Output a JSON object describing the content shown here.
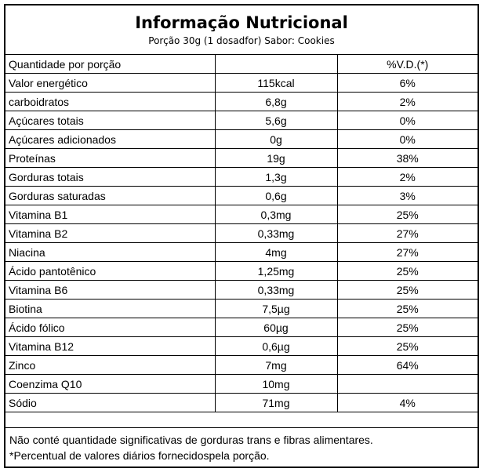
{
  "header": {
    "title": "Informação Nutricional",
    "subtitle": "Porção 30g (1 dosadfor) Sabor: Cookies"
  },
  "table": {
    "columns": [
      "Quantidade por porção",
      "",
      "%V.D.(*)"
    ],
    "rows": [
      {
        "name": "Valor energético",
        "amount": "115kcal",
        "dv": "6%"
      },
      {
        "name": "carboidratos",
        "amount": "6,8g",
        "dv": "2%"
      },
      {
        "name": "Açúcares totais",
        "amount": "5,6g",
        "dv": "0%"
      },
      {
        "name": "Açúcares adicionados",
        "amount": "0g",
        "dv": "0%"
      },
      {
        "name": "Proteínas",
        "amount": "19g",
        "dv": "38%"
      },
      {
        "name": "Gorduras totais",
        "amount": "1,3g",
        "dv": "2%"
      },
      {
        "name": "Gorduras saturadas",
        "amount": "0,6g",
        "dv": "3%"
      },
      {
        "name": "Vitamina B1",
        "amount": "0,3mg",
        "dv": "25%"
      },
      {
        "name": "Vitamina B2",
        "amount": "0,33mg",
        "dv": "27%"
      },
      {
        "name": "Niacina",
        "amount": "4mg",
        "dv": "27%"
      },
      {
        "name": "Ácido pantotênico",
        "amount": "1,25mg",
        "dv": "25%"
      },
      {
        "name": "Vitamina B6",
        "amount": "0,33mg",
        "dv": "25%"
      },
      {
        "name": "Biotina",
        "amount": "7,5µg",
        "dv": "25%"
      },
      {
        "name": "Ácido fólico",
        "amount": "60µg",
        "dv": "25%"
      },
      {
        "name": "Vitamina B12",
        "amount": "0,6µg",
        "dv": "25%"
      },
      {
        "name": "Zinco",
        "amount": "7mg",
        "dv": "64%"
      },
      {
        "name": "Coenzima Q10",
        "amount": "10mg",
        "dv": ""
      },
      {
        "name": "Sódio",
        "amount": "71mg",
        "dv": "4%"
      }
    ]
  },
  "footer": {
    "line1": "Não conté quantidade significativas de gorduras trans e fibras alimentares.",
    "line2": "*Percentual de valores diários fornecidospela porção."
  }
}
